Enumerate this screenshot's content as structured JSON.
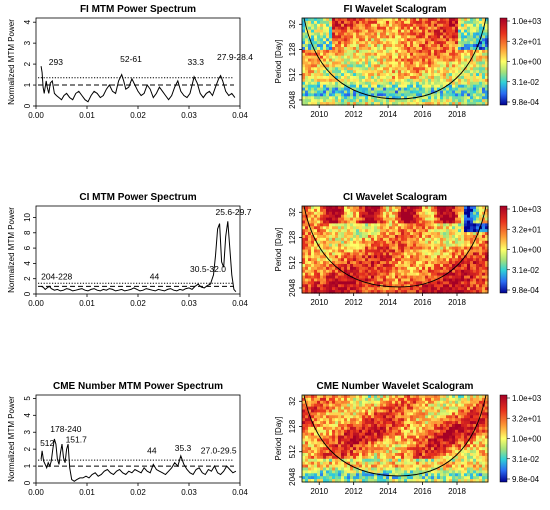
{
  "chart_data": [
    {
      "type": "line",
      "title": "FI MTM Power Spectrum",
      "xlabel": "",
      "ylabel": "Normalized MTM Power",
      "xlim": [
        0,
        0.04
      ],
      "ylim": [
        0,
        4.2
      ],
      "xticks": [
        "0.00",
        "0.01",
        "0.02",
        "0.03",
        "0.04"
      ],
      "xtick_values": [
        0,
        0.01,
        0.02,
        0.03,
        0.04
      ],
      "yticks": [
        "0",
        "1",
        "2",
        "3",
        "4"
      ],
      "ytick_values": [
        0,
        1,
        2,
        3,
        4
      ],
      "dotted_level": 1.35,
      "dashed_level": 1.0,
      "x": [
        0.001,
        0.0012,
        0.0014,
        0.0016,
        0.0018,
        0.002,
        0.0022,
        0.0025,
        0.0028,
        0.0032,
        0.0036,
        0.004,
        0.0045,
        0.005,
        0.0055,
        0.006,
        0.0066,
        0.0072,
        0.0078,
        0.0084,
        0.009,
        0.0096,
        0.0102,
        0.0108,
        0.0114,
        0.012,
        0.0126,
        0.0132,
        0.0138,
        0.0144,
        0.015,
        0.0156,
        0.0162,
        0.0168,
        0.0172,
        0.0176,
        0.0182,
        0.0188,
        0.0194,
        0.02,
        0.0206,
        0.0212,
        0.0218,
        0.0224,
        0.023,
        0.0236,
        0.0242,
        0.0248,
        0.0254,
        0.026,
        0.0266,
        0.0272,
        0.0278,
        0.0284,
        0.029,
        0.0296,
        0.0302,
        0.0306,
        0.031,
        0.0316,
        0.0322,
        0.0328,
        0.0334,
        0.034,
        0.0346,
        0.0352,
        0.0358,
        0.0362,
        0.0366,
        0.0372,
        0.0378,
        0.0384,
        0.039
      ],
      "y": [
        1.9,
        1.6,
        0.9,
        0.6,
        0.9,
        1.2,
        0.9,
        0.6,
        1.1,
        1.2,
        0.6,
        0.5,
        0.4,
        0.3,
        0.5,
        0.6,
        0.4,
        0.3,
        0.6,
        0.7,
        0.5,
        0.3,
        0.2,
        0.5,
        0.7,
        0.6,
        0.4,
        0.5,
        0.8,
        1.0,
        0.7,
        0.6,
        1.2,
        1.5,
        1.2,
        0.8,
        0.9,
        1.3,
        1.0,
        0.7,
        0.5,
        0.6,
        1.0,
        0.8,
        0.4,
        0.6,
        0.9,
        0.7,
        0.5,
        0.3,
        0.5,
        0.9,
        1.2,
        0.7,
        0.5,
        0.4,
        0.6,
        1.0,
        1.4,
        1.1,
        0.6,
        0.4,
        0.6,
        0.7,
        0.5,
        0.9,
        1.3,
        1.45,
        1.2,
        0.7,
        0.5,
        0.6,
        0.4
      ],
      "annotations": [
        {
          "text": "293",
          "x": 0.0025,
          "y": 1.95
        },
        {
          "text": "52-61",
          "x": 0.0165,
          "y": 2.1
        },
        {
          "text": "33.3",
          "x": 0.0297,
          "y": 1.95
        },
        {
          "text": "27.9-28.4",
          "x": 0.0355,
          "y": 2.2
        }
      ]
    },
    {
      "type": "heatmap",
      "title": "FI Wavelet Scalogram",
      "xlabel": "",
      "ylabel": "Period [Day]",
      "xticks": [
        "2010",
        "2012",
        "2014",
        "2016",
        "2018"
      ],
      "xtick_values": [
        2010,
        2012,
        2014,
        2016,
        2018
      ],
      "yticks": [
        "32",
        "128",
        "512",
        "2048"
      ],
      "ytick_values": [
        32,
        128,
        512,
        2048
      ],
      "xlim": [
        2009,
        2019.8
      ],
      "ylim_log2_period": [
        4.5,
        11.4
      ],
      "colorbar_labels": [
        "1.0e+03",
        "3.2e+01",
        "1.0e+00",
        "3.1e-02",
        "9.8e-04"
      ],
      "colorbar_values": [
        1000,
        32,
        1,
        0.031,
        0.00098
      ]
    },
    {
      "type": "line",
      "title": "CI MTM Power Spectrum",
      "xlabel": "",
      "ylabel": "Normalized MTM Power",
      "xlim": [
        0,
        0.04
      ],
      "ylim": [
        0,
        11.5
      ],
      "xticks": [
        "0.00",
        "0.01",
        "0.02",
        "0.03",
        "0.04"
      ],
      "xtick_values": [
        0,
        0.01,
        0.02,
        0.03,
        0.04
      ],
      "yticks": [
        "0",
        "2",
        "4",
        "6",
        "8",
        "10"
      ],
      "ytick_values": [
        0,
        2,
        4,
        6,
        8,
        10
      ],
      "dotted_level": 1.4,
      "dashed_level": 1.0,
      "x": [
        0.001,
        0.0014,
        0.0018,
        0.0022,
        0.0026,
        0.003,
        0.0036,
        0.0042,
        0.0048,
        0.0054,
        0.006,
        0.0066,
        0.0072,
        0.0078,
        0.0084,
        0.009,
        0.0096,
        0.0102,
        0.0108,
        0.0114,
        0.012,
        0.0126,
        0.0132,
        0.0138,
        0.0144,
        0.015,
        0.0156,
        0.0162,
        0.0168,
        0.0174,
        0.018,
        0.0186,
        0.0192,
        0.0198,
        0.0204,
        0.021,
        0.0216,
        0.0222,
        0.0228,
        0.0234,
        0.024,
        0.0246,
        0.0252,
        0.0258,
        0.0264,
        0.027,
        0.0276,
        0.0282,
        0.0288,
        0.0294,
        0.03,
        0.0306,
        0.0312,
        0.0318,
        0.0324,
        0.033,
        0.0336,
        0.0342,
        0.0348,
        0.0352,
        0.0356,
        0.036,
        0.0364,
        0.0368,
        0.0372,
        0.0376,
        0.038,
        0.0384,
        0.0388,
        0.0392
      ],
      "y": [
        1.0,
        0.9,
        0.6,
        0.8,
        1.0,
        0.7,
        0.5,
        0.6,
        0.4,
        0.5,
        0.7,
        0.6,
        0.4,
        0.5,
        0.6,
        0.7,
        0.5,
        0.4,
        0.6,
        0.7,
        0.5,
        0.4,
        0.6,
        0.5,
        0.7,
        0.6,
        0.4,
        0.5,
        0.6,
        0.4,
        0.5,
        0.6,
        0.8,
        0.6,
        0.4,
        0.5,
        0.7,
        0.6,
        0.5,
        0.4,
        0.6,
        0.5,
        0.4,
        0.6,
        0.7,
        0.5,
        0.4,
        0.6,
        0.5,
        0.7,
        0.8,
        0.6,
        1.0,
        1.3,
        0.9,
        0.8,
        1.1,
        1.3,
        2.5,
        5.0,
        8.5,
        9.2,
        4.2,
        3.5,
        7.5,
        9.5,
        6.0,
        2.5,
        0.6,
        0.3
      ],
      "annotations": [
        {
          "text": "204-228",
          "x": 0.001,
          "y": 1.9
        },
        {
          "text": "44",
          "x": 0.0223,
          "y": 1.9
        },
        {
          "text": "30.5-32.0",
          "x": 0.0302,
          "y": 2.9
        },
        {
          "text": "25.6-29.7",
          "x": 0.0352,
          "y": 10.3
        }
      ]
    },
    {
      "type": "heatmap",
      "title": "CI Wavelet Scalogram",
      "xlabel": "",
      "ylabel": "Period [Day]",
      "xticks": [
        "2010",
        "2012",
        "2014",
        "2016",
        "2018"
      ],
      "xtick_values": [
        2010,
        2012,
        2014,
        2016,
        2018
      ],
      "yticks": [
        "32",
        "128",
        "512",
        "2048"
      ],
      "ytick_values": [
        32,
        128,
        512,
        2048
      ],
      "xlim": [
        2009,
        2019.8
      ],
      "ylim_log2_period": [
        4.5,
        11.4
      ],
      "colorbar_labels": [
        "1.0e+03",
        "3.2e+01",
        "1.0e+00",
        "3.1e-02",
        "9.8e-04"
      ],
      "colorbar_values": [
        1000,
        32,
        1,
        0.031,
        0.00098
      ]
    },
    {
      "type": "line",
      "title": "CME Number MTM Power Spectrum",
      "xlabel": "",
      "ylabel": "Normalized MTM Power",
      "xlim": [
        0,
        0.04
      ],
      "ylim": [
        0,
        5.2
      ],
      "xticks": [
        "0.00",
        "0.01",
        "0.02",
        "0.03",
        "0.04"
      ],
      "xtick_values": [
        0,
        0.01,
        0.02,
        0.03,
        0.04
      ],
      "yticks": [
        "0",
        "1",
        "2",
        "3",
        "4",
        "5"
      ],
      "ytick_values": [
        0,
        1,
        2,
        3,
        4,
        5
      ],
      "dotted_level": 1.35,
      "dashed_level": 1.0,
      "x": [
        0.001,
        0.0012,
        0.0015,
        0.0018,
        0.0021,
        0.0024,
        0.0027,
        0.003,
        0.0033,
        0.0036,
        0.0039,
        0.0042,
        0.0045,
        0.0048,
        0.0051,
        0.0054,
        0.0057,
        0.006,
        0.0063,
        0.0066,
        0.007,
        0.0075,
        0.008,
        0.0086,
        0.0092,
        0.0098,
        0.0104,
        0.011,
        0.0116,
        0.0122,
        0.0128,
        0.0134,
        0.014,
        0.0146,
        0.0152,
        0.0158,
        0.0164,
        0.017,
        0.0176,
        0.0182,
        0.0188,
        0.0194,
        0.02,
        0.0206,
        0.0212,
        0.0218,
        0.0224,
        0.023,
        0.0236,
        0.0242,
        0.0248,
        0.0254,
        0.026,
        0.0266,
        0.0272,
        0.0278,
        0.0284,
        0.029,
        0.0296,
        0.0302,
        0.0308,
        0.0314,
        0.032,
        0.0326,
        0.0332,
        0.0338,
        0.0344,
        0.035,
        0.0356,
        0.0362,
        0.0368,
        0.0374,
        0.038,
        0.0386,
        0.0392
      ],
      "y": [
        1.4,
        1.9,
        1.3,
        1.1,
        0.9,
        1.2,
        1.0,
        1.3,
        2.0,
        2.6,
        2.3,
        1.4,
        1.1,
        1.8,
        2.3,
        1.5,
        1.2,
        2.0,
        2.3,
        0.9,
        0.2,
        0.1,
        0.2,
        0.3,
        0.3,
        0.4,
        0.3,
        0.5,
        0.6,
        0.4,
        0.5,
        0.7,
        0.8,
        0.6,
        0.5,
        0.7,
        0.8,
        0.6,
        0.5,
        0.7,
        0.6,
        0.8,
        0.7,
        0.6,
        0.9,
        0.7,
        0.6,
        1.1,
        0.8,
        0.7,
        0.6,
        0.5,
        0.7,
        0.9,
        1.2,
        1.0,
        1.6,
        1.1,
        0.8,
        0.6,
        0.5,
        0.8,
        0.9,
        0.6,
        0.5,
        0.8,
        0.7,
        1.0,
        0.6,
        0.5,
        0.7,
        1.0,
        0.8,
        0.6,
        0.7
      ],
      "annotations": [
        {
          "text": "512",
          "x": 0.0008,
          "y": 2.2
        },
        {
          "text": "178-240",
          "x": 0.0028,
          "y": 3.0
        },
        {
          "text": "151.7",
          "x": 0.0058,
          "y": 2.4
        },
        {
          "text": "44",
          "x": 0.0218,
          "y": 1.75
        },
        {
          "text": "35.3",
          "x": 0.0272,
          "y": 1.9
        },
        {
          "text": "27.0-29.5",
          "x": 0.0323,
          "y": 1.75
        }
      ]
    },
    {
      "type": "heatmap",
      "title": "CME Number Wavelet Scalogram",
      "xlabel": "",
      "ylabel": "Period [Day]",
      "xticks": [
        "2010",
        "2012",
        "2014",
        "2016",
        "2018"
      ],
      "xtick_values": [
        2010,
        2012,
        2014,
        2016,
        2018
      ],
      "yticks": [
        "32",
        "128",
        "512",
        "2048"
      ],
      "ytick_values": [
        32,
        128,
        512,
        2048
      ],
      "xlim": [
        2009,
        2019.8
      ],
      "ylim_log2_period": [
        4.5,
        11.4
      ],
      "colorbar_labels": [
        "1.0e+03",
        "3.2e+01",
        "1.0e+00",
        "3.1e-02",
        "9.8e-04"
      ],
      "colorbar_values": [
        1000,
        32,
        1,
        0.031,
        0.00098
      ]
    }
  ]
}
